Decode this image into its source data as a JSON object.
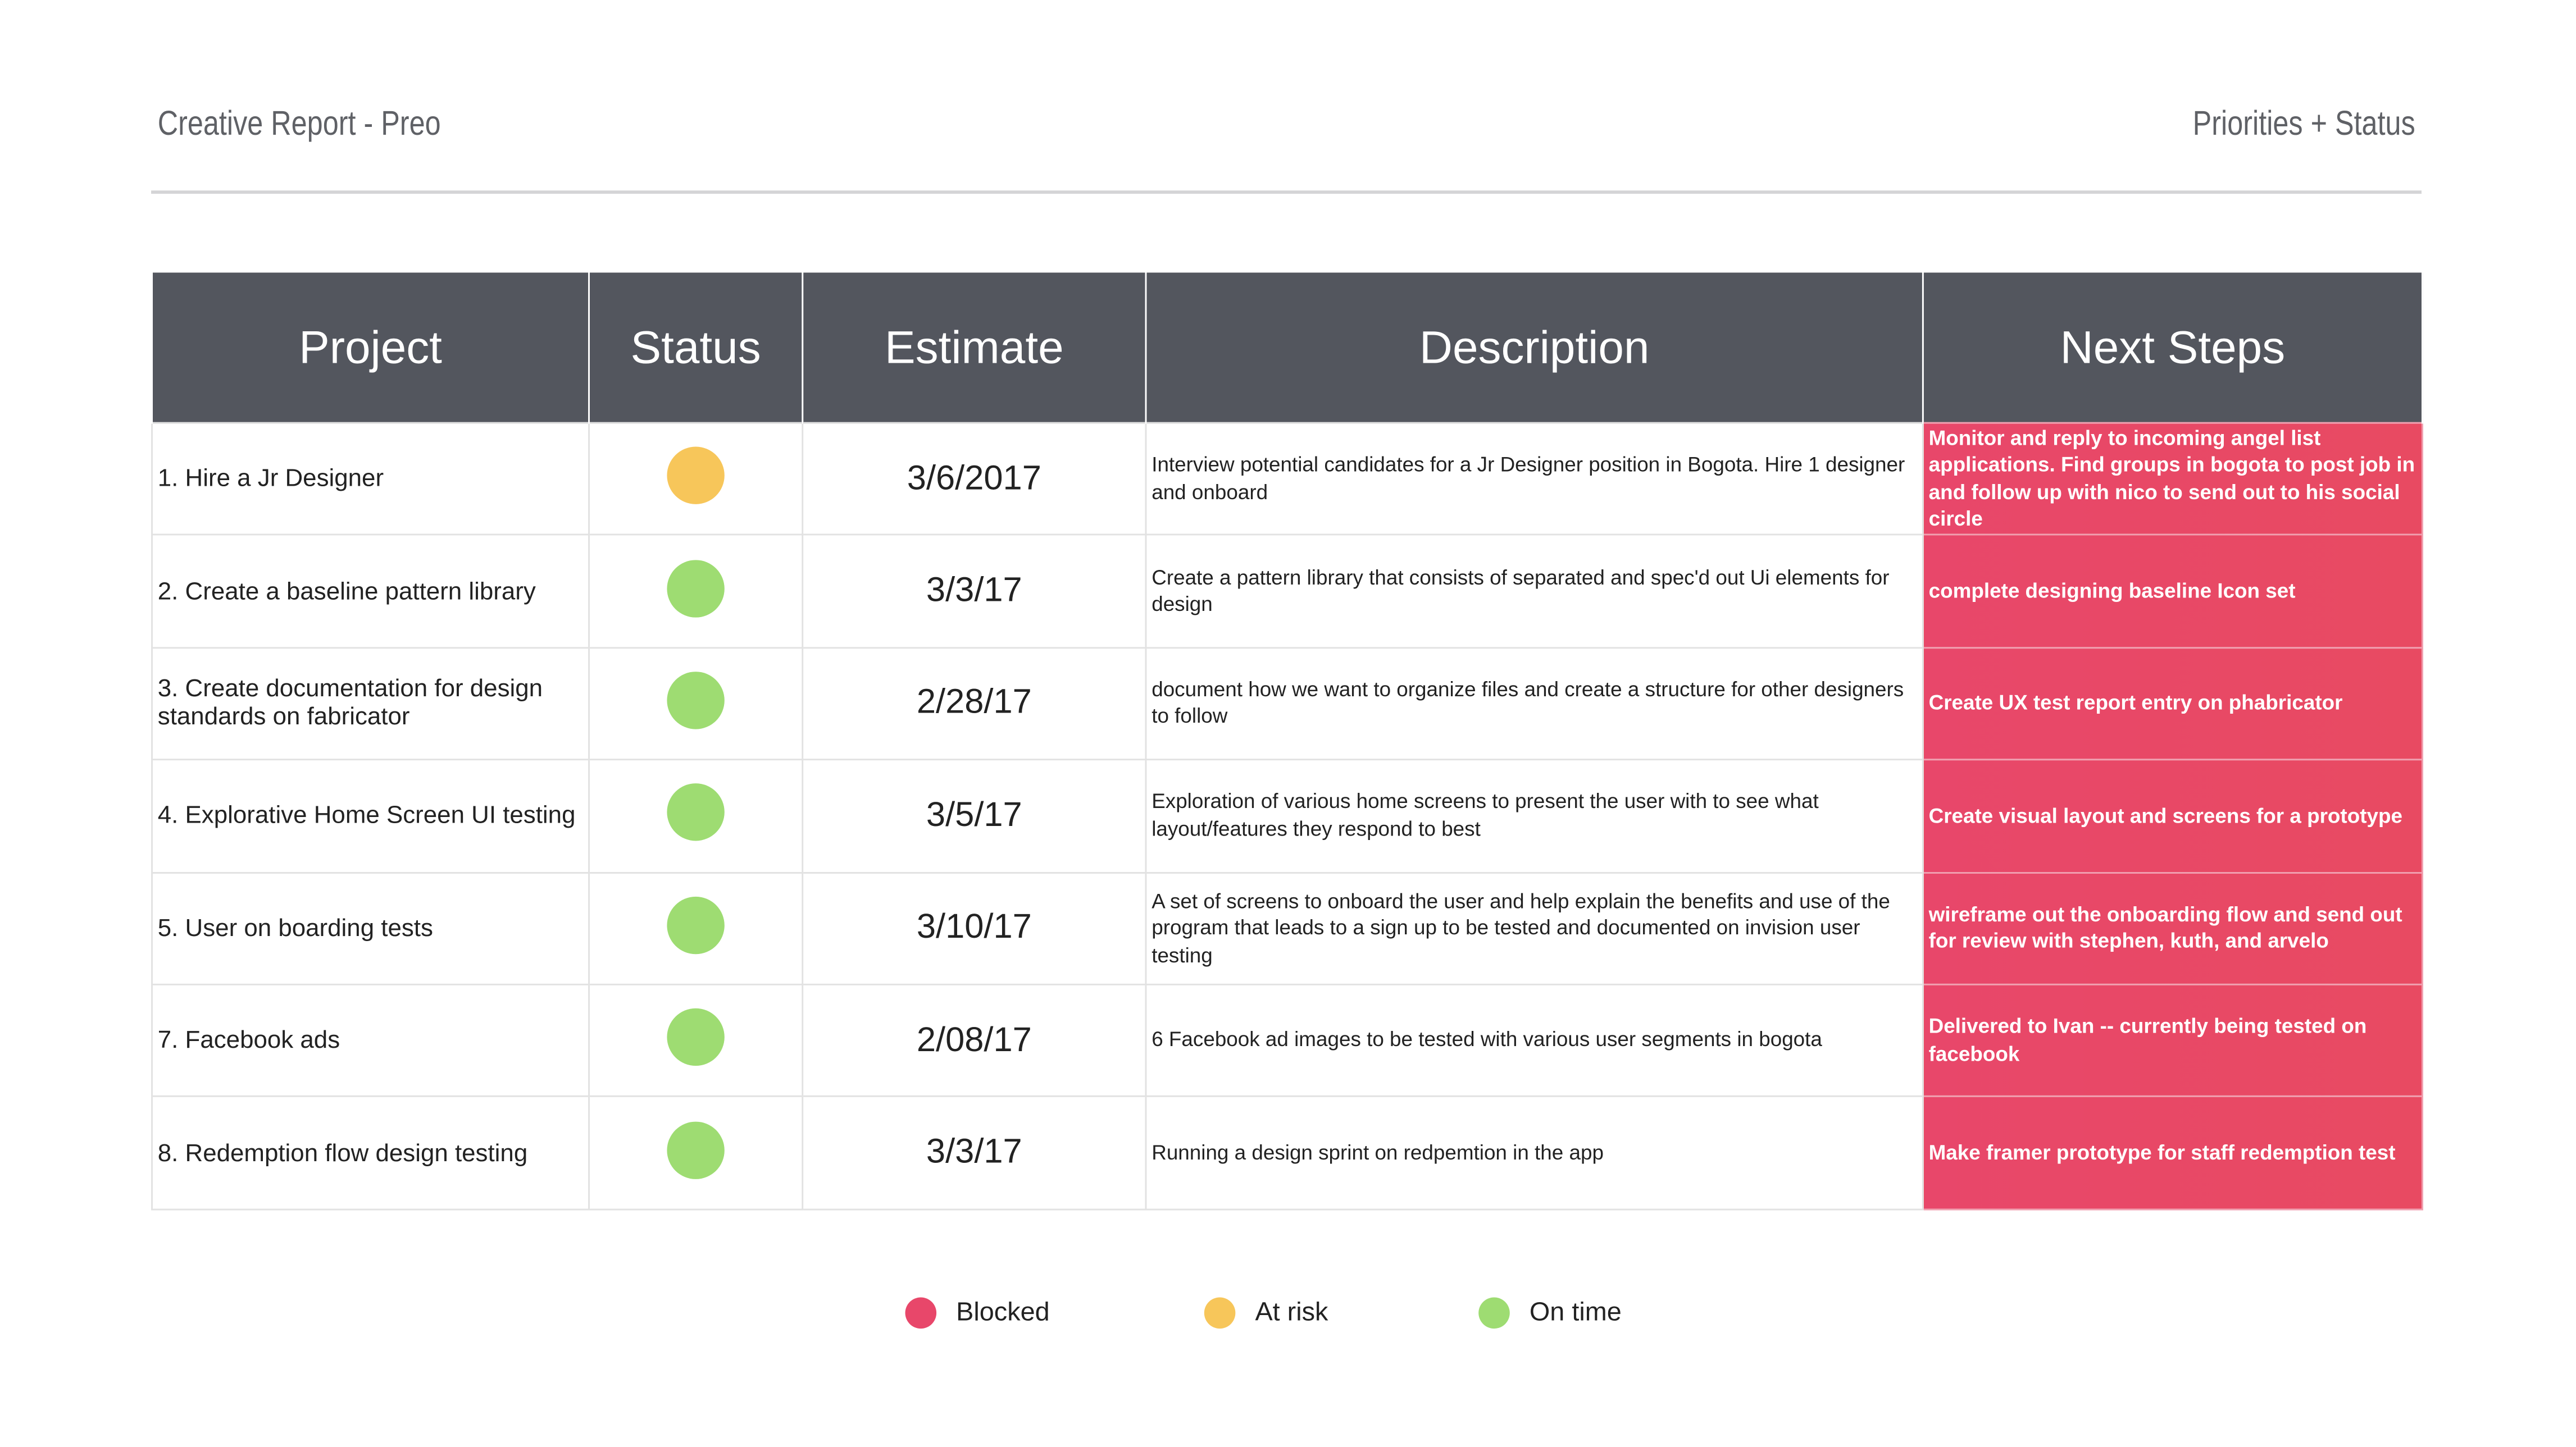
{
  "header": {
    "title": "Creative Report - Preo",
    "subtitle": "Priorities + Status"
  },
  "table": {
    "columns": [
      "Project",
      "Status",
      "Estimate",
      "Description",
      "Next Steps"
    ],
    "rows": [
      {
        "project": "1. Hire a Jr Designer",
        "status": "At risk",
        "estimate": "3/6/2017",
        "description": "Interview potential candidates for a Jr Designer position in Bogota. Hire 1 designer and onboard",
        "next_steps": "Monitor and reply to incoming angel list applications. Find groups in bogota to post job in and follow up with nico to send out to his social circle"
      },
      {
        "project": "2. Create a baseline pattern library",
        "status": "On time",
        "estimate": "3/3/17",
        "description": "Create a pattern library that consists of separated and spec'd out Ui elements for design",
        "next_steps": "complete designing baseline Icon set"
      },
      {
        "project": "3. Create documentation for design standards on fabricator",
        "status": "On time",
        "estimate": "2/28/17",
        "description": "document how we want to organize files and create a structure for other designers to follow",
        "next_steps": "Create UX test report entry on phabricator"
      },
      {
        "project": "4. Explorative Home Screen UI testing",
        "status": "On time",
        "estimate": "3/5/17",
        "description": "Exploration of various home screens to present the user with to see what layout/features they respond to best",
        "next_steps": "Create visual layout and screens for a prototype"
      },
      {
        "project": "5. User on boarding tests",
        "status": "On time",
        "estimate": "3/10/17",
        "description": "A set of screens to onboard the user and help explain the benefits and use of the program that leads to a sign up to be tested and documented on invision user testing",
        "next_steps": "wireframe out the onboarding flow and send out for review with stephen, kuth, and arvelo"
      },
      {
        "project": "7. Facebook ads",
        "status": "On time",
        "estimate": "2/08/17",
        "description": "6 Facebook ad images to be tested with various user segments in bogota",
        "next_steps": "Delivered to Ivan -- currently being tested on facebook"
      },
      {
        "project": "8. Redemption flow design testing",
        "status": "On time",
        "estimate": "3/3/17",
        "description": "Running a design sprint on redpemtion in the app",
        "next_steps": "Make framer prototype for staff redemption test"
      }
    ]
  },
  "legend": [
    {
      "label": "Blocked",
      "color": "#e8476a"
    },
    {
      "label": "At risk",
      "color": "#f7c65a"
    },
    {
      "label": "On time",
      "color": "#9edc72"
    }
  ]
}
